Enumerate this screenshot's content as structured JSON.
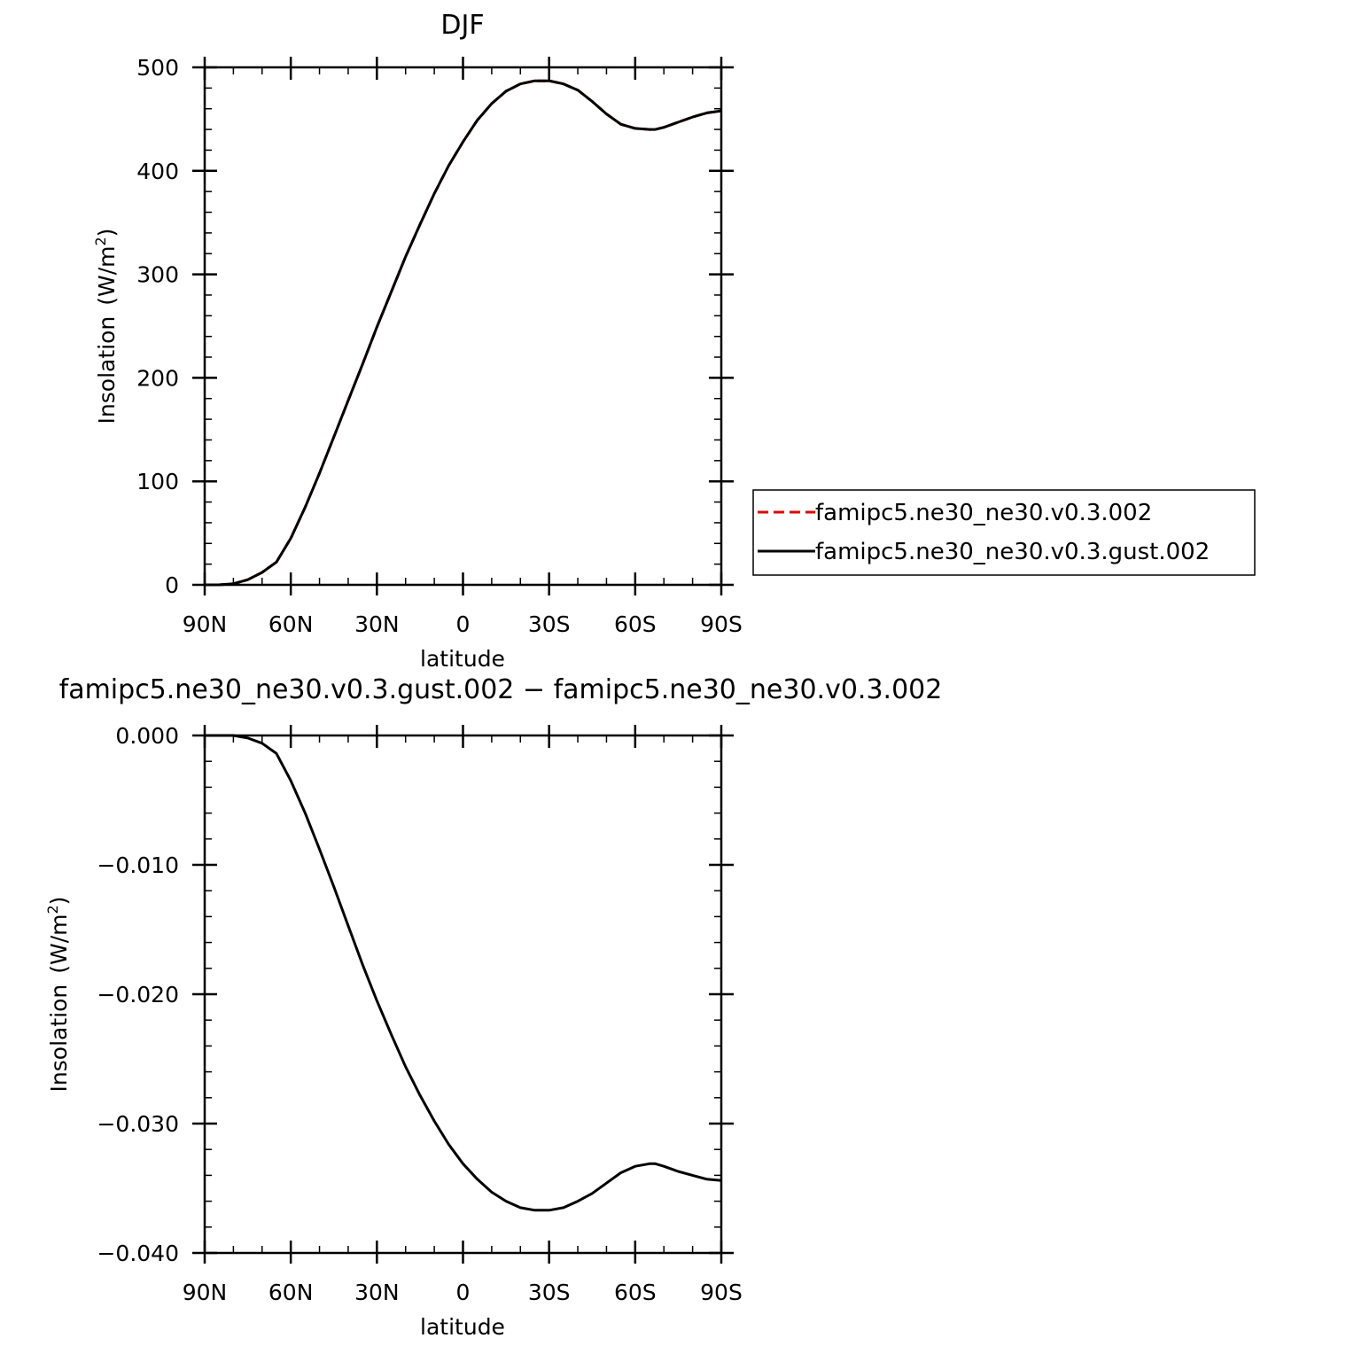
{
  "chart_data": [
    {
      "type": "line",
      "title": "DJF",
      "xlabel": "latitude",
      "ylabel": "Insolation",
      "ylabel_units": "(W/m2)",
      "xlim": [
        90,
        -90
      ],
      "ylim": [
        0,
        500
      ],
      "xticks": [
        90,
        60,
        30,
        0,
        -30,
        -60,
        -90
      ],
      "xtick_labels": [
        "90N",
        "60N",
        "30N",
        "0",
        "30S",
        "60S",
        "90S"
      ],
      "yticks": [
        0,
        100,
        200,
        300,
        400,
        500
      ],
      "ytick_labels": [
        "0",
        "100",
        "200",
        "300",
        "400",
        "500"
      ],
      "x_minor_step": 10,
      "y_minor_step": 20,
      "grid": false,
      "legend_position": "right, outside plot",
      "x": [
        90,
        85,
        80,
        75,
        70,
        65,
        60,
        55,
        50,
        45,
        40,
        35,
        30,
        25,
        20,
        15,
        10,
        5,
        0,
        -5,
        -10,
        -15,
        -20,
        -25,
        -30,
        -35,
        -40,
        -45,
        -50,
        -55,
        -60,
        -65,
        -67,
        -70,
        -75,
        -80,
        -85,
        -90
      ],
      "series": [
        {
          "name": "famipc5.ne30_ne30.v0.3.002",
          "color": "#e00000",
          "dash": "dashed",
          "values": [
            0,
            0,
            1,
            5,
            12,
            22,
            45,
            75,
            108,
            143,
            178,
            213,
            249,
            283,
            317,
            348,
            378,
            405,
            428,
            449,
            465,
            477,
            484,
            487,
            487,
            484,
            478,
            467,
            455,
            445,
            441,
            440,
            440,
            442,
            447,
            452,
            456,
            458
          ]
        },
        {
          "name": "famipc5.ne30_ne30.v0.3.gust.002",
          "color": "#000000",
          "dash": "solid",
          "values": [
            0,
            0,
            1,
            5,
            12,
            22,
            45,
            75,
            108,
            143,
            178,
            213,
            249,
            283,
            317,
            348,
            378,
            405,
            428,
            449,
            465,
            477,
            484,
            487,
            487,
            484,
            478,
            467,
            455,
            445,
            441,
            440,
            440,
            442,
            447,
            452,
            456,
            458
          ]
        }
      ]
    },
    {
      "type": "line",
      "title": "famipc5.ne30_ne30.v0.3.gust.002 − famipc5.ne30_ne30.v0.3.002",
      "xlabel": "latitude",
      "ylabel": "Insolation",
      "ylabel_units": "(W/m2)",
      "xlim": [
        90,
        -90
      ],
      "ylim": [
        -0.04,
        0
      ],
      "xticks": [
        90,
        60,
        30,
        0,
        -30,
        -60,
        -90
      ],
      "xtick_labels": [
        "90N",
        "60N",
        "30N",
        "0",
        "30S",
        "60S",
        "90S"
      ],
      "yticks": [
        0,
        -0.01,
        -0.02,
        -0.03,
        -0.04
      ],
      "ytick_labels": [
        "0.000",
        "−0.010",
        "−0.020",
        "−0.030",
        "−0.040"
      ],
      "x_minor_step": 10,
      "y_minor_step": 0.002,
      "grid": false,
      "x": [
        90,
        85,
        80,
        75,
        70,
        65,
        60,
        55,
        50,
        45,
        40,
        35,
        30,
        25,
        20,
        15,
        10,
        5,
        0,
        -5,
        -10,
        -15,
        -20,
        -25,
        -30,
        -35,
        -40,
        -45,
        -50,
        -55,
        -60,
        -65,
        -67,
        -70,
        -75,
        -80,
        -85,
        -90
      ],
      "series": [
        {
          "color": "#000000",
          "dash": "solid",
          "values": [
            0,
            0,
            0,
            -0.0002,
            -0.0006,
            -0.0014,
            -0.0035,
            -0.006,
            -0.0088,
            -0.0117,
            -0.0147,
            -0.0177,
            -0.0205,
            -0.0231,
            -0.0256,
            -0.0278,
            -0.0298,
            -0.0316,
            -0.0331,
            -0.0343,
            -0.0353,
            -0.036,
            -0.0365,
            -0.0367,
            -0.0367,
            -0.0365,
            -0.036,
            -0.0354,
            -0.0346,
            -0.0338,
            -0.0333,
            -0.0331,
            -0.0331,
            -0.0333,
            -0.0337,
            -0.034,
            -0.0343,
            -0.0344
          ]
        }
      ]
    }
  ]
}
